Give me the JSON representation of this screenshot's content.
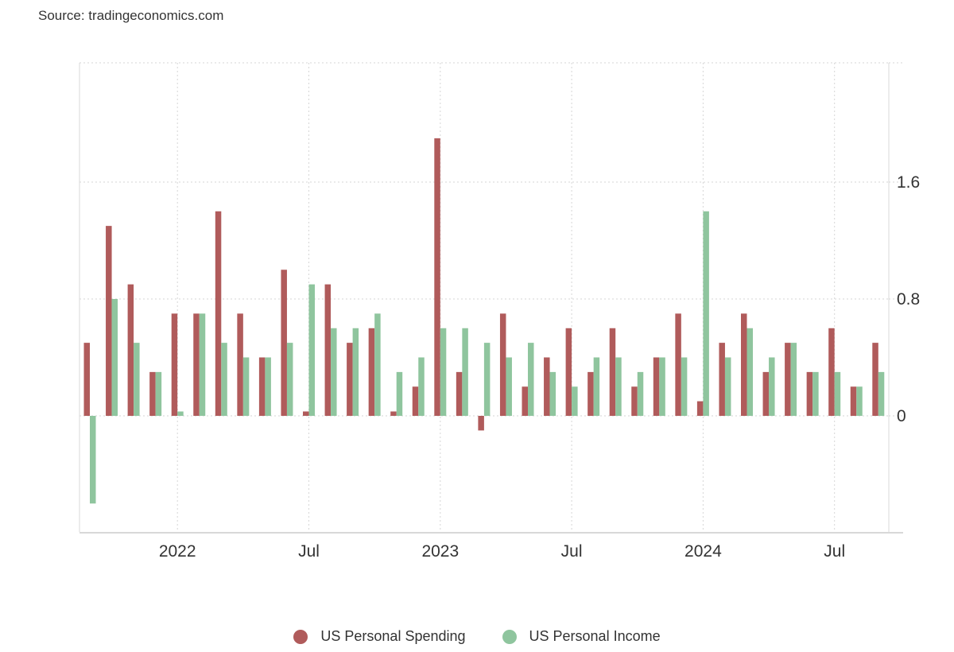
{
  "source": "Source: tradingeconomics.com",
  "chart_data": {
    "type": "bar",
    "categories": [
      "2021-09",
      "2021-10",
      "2021-11",
      "2021-12",
      "2022-01",
      "2022-02",
      "2022-03",
      "2022-04",
      "2022-05",
      "2022-06",
      "2022-07",
      "2022-08",
      "2022-09",
      "2022-10",
      "2022-11",
      "2022-12",
      "2023-01",
      "2023-02",
      "2023-03",
      "2023-04",
      "2023-05",
      "2023-06",
      "2023-07",
      "2023-08",
      "2023-09",
      "2023-10",
      "2023-11",
      "2023-12",
      "2024-01",
      "2024-02",
      "2024-03",
      "2024-04",
      "2024-05",
      "2024-06",
      "2024-07",
      "2024-08",
      "2024-09",
      "2024-10"
    ],
    "series": [
      {
        "name": "US Personal Spending",
        "color": "#b05b5b",
        "values": [
          0.5,
          1.3,
          0.9,
          0.3,
          0.7,
          0.7,
          1.4,
          0.7,
          0.4,
          1.0,
          0.03,
          0.9,
          0.5,
          0.6,
          0.03,
          0.2,
          1.9,
          0.3,
          -0.1,
          0.7,
          0.2,
          0.4,
          0.6,
          0.3,
          0.6,
          0.2,
          0.4,
          0.7,
          0.1,
          0.5,
          0.7,
          0.3,
          0.5,
          0.3,
          0.6,
          0.2,
          0.5,
          null
        ]
      },
      {
        "name": "US Personal Income",
        "color": "#8fc59e",
        "values": [
          -0.6,
          0.8,
          0.5,
          0.3,
          0.03,
          0.7,
          0.5,
          0.4,
          0.4,
          0.5,
          0.9,
          0.6,
          0.6,
          0.7,
          0.3,
          0.4,
          0.6,
          0.6,
          0.5,
          0.4,
          0.5,
          0.3,
          0.2,
          0.4,
          0.4,
          0.3,
          0.4,
          0.4,
          1.4,
          0.4,
          0.6,
          0.4,
          0.5,
          0.3,
          0.3,
          0.2,
          0.3,
          null
        ]
      }
    ],
    "x_tick_labels": [
      {
        "label": "2022",
        "date": "2022-01"
      },
      {
        "label": "Jul",
        "date": "2022-07"
      },
      {
        "label": "2023",
        "date": "2023-01"
      },
      {
        "label": "Jul",
        "date": "2023-07"
      },
      {
        "label": "2024",
        "date": "2024-01"
      },
      {
        "label": "Jul",
        "date": "2024-07"
      }
    ],
    "y_ticks": [
      0,
      0.8,
      1.6
    ],
    "y_tick_labels": [
      "0",
      "0.8",
      "1.6"
    ],
    "ylim": [
      -0.8,
      2.4
    ],
    "y_axis_side": "right",
    "grid": true,
    "legend_position": "bottom-center"
  }
}
